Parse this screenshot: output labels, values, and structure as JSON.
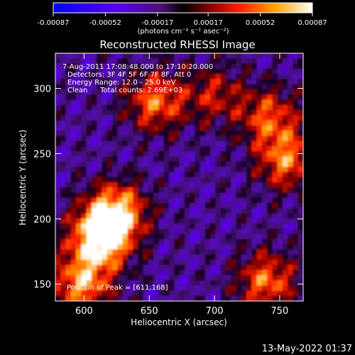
{
  "chart_data": {
    "type": "heatmap",
    "title": "Reconstructed RHESSI Image",
    "xlabel": "Heliocentric X (arcsec)",
    "ylabel": "Heliocentric Y (arcsec)",
    "xlim": [
      578,
      768
    ],
    "ylim": [
      137,
      327
    ],
    "x_ticks": [
      600,
      650,
      700,
      750
    ],
    "y_ticks": [
      150,
      200,
      250,
      300
    ],
    "x_tick_labels": [
      "600",
      "650",
      "700",
      "750"
    ],
    "y_tick_labels": [
      "150",
      "200",
      "250",
      "300"
    ],
    "colorbar": {
      "range": [
        -0.00087,
        0.00087
      ],
      "tick_labels": [
        "-0.00087",
        "-0.00052",
        "-0.00017",
        "0.00017",
        "0.00052",
        "0.00087"
      ],
      "unit_label": "(photons cm⁻² s⁻¹ asec⁻²)"
    },
    "annotations": {
      "time_range": "7-Aug-2011 17:08:48.000 to 17:10:20.000",
      "detectors": "Detectors: 3F 4F 5F 6F 7F 8F, Att 0",
      "energy_range": "Energy Range: 12.0 - 25.0 keV",
      "method": "Clean",
      "total_counts": "Total counts: 2.69E+03",
      "peak": "Position of Peak = [611,168]"
    },
    "grid": false,
    "map_summary": {
      "peak_position": [
        611,
        168
      ],
      "bright_regions": [
        {
          "x": 612,
          "y": 185,
          "level": 0.00087
        },
        {
          "x": 625,
          "y": 205,
          "level": 0.0007
        },
        {
          "x": 598,
          "y": 150,
          "level": 0.0006
        },
        {
          "x": 655,
          "y": 290,
          "level": 0.0005
        },
        {
          "x": 742,
          "y": 278,
          "level": 0.0004
        },
        {
          "x": 755,
          "y": 245,
          "level": 0.0005
        },
        {
          "x": 740,
          "y": 152,
          "level": 0.0005
        },
        {
          "x": 700,
          "y": 295,
          "level": 0.00025
        }
      ],
      "background_level": -0.0002
    }
  },
  "footer": {
    "date_stamp": "13-May-2022 01:37"
  }
}
